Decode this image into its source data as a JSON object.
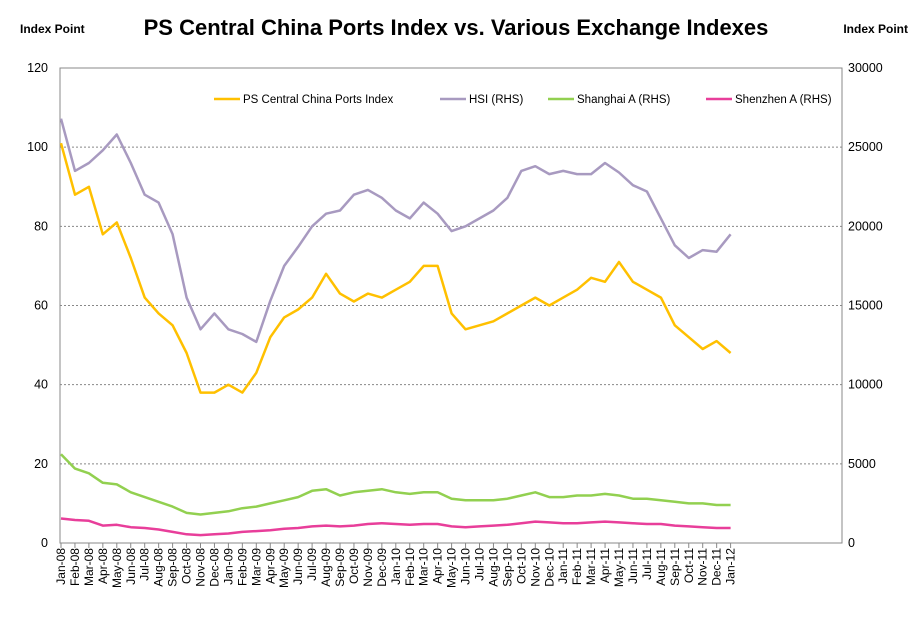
{
  "chart_data": {
    "type": "line",
    "title": "PS Central China Ports Index vs. Various Exchange Indexes",
    "ylabel_left": "Index Point",
    "ylabel_right": "Index Point",
    "ylim_left": [
      0,
      120
    ],
    "ylim_right": [
      0,
      30000
    ],
    "yticks_left": [
      "0",
      "20",
      "40",
      "60",
      "80",
      "100",
      "120"
    ],
    "yticks_right": [
      "0",
      "5000",
      "10000",
      "15000",
      "20000",
      "25000",
      "30000"
    ],
    "grid": true,
    "legend_position": "top-right, inside plot",
    "categories": [
      "Jan-08",
      "Feb-08",
      "Mar-08",
      "Apr-08",
      "May-08",
      "Jun-08",
      "Jul-08",
      "Aug-08",
      "Sep-08",
      "Oct-08",
      "Nov-08",
      "Dec-08",
      "Jan-09",
      "Feb-09",
      "Mar-09",
      "Apr-09",
      "May-09",
      "Jun-09",
      "Jul-09",
      "Aug-09",
      "Sep-09",
      "Oct-09",
      "Nov-09",
      "Dec-09",
      "Jan-10",
      "Feb-10",
      "Mar-10",
      "Apr-10",
      "May-10",
      "Jun-10",
      "Jul-10",
      "Aug-10",
      "Sep-10",
      "Oct-10",
      "Nov-10",
      "Dec-10",
      "Jan-11",
      "Feb-11",
      "Mar-11",
      "Apr-11",
      "May-11",
      "Jun-11",
      "Jul-11",
      "Aug-11",
      "Sep-11",
      "Oct-11",
      "Nov-11",
      "Dec-11",
      "Jan-12"
    ],
    "x_tick_labels": [
      "Jan-08",
      "Feb-08",
      "Mar-08",
      "Apr-08",
      "May-08",
      "Jun-08",
      "Jul-08",
      "Aug-08",
      "Sep-08",
      "Oct-08",
      "Nov-08",
      "Dec-08",
      "Jan-09",
      "Feb-09",
      "Mar-09",
      "Apr-09",
      "May-09",
      "Jun-09",
      "Jul-09",
      "Aug-09",
      "Sep-09",
      "Oct-09",
      "Nov-09",
      "Dec-09",
      "Jan-10",
      "Feb-10",
      "Mar-10",
      "Apr-10",
      "May-10",
      "Jun-10",
      "Jul-10",
      "Aug-10",
      "Sep-10",
      "Oct-10",
      "Nov-10",
      "Dec-10",
      "Jan-11",
      "Feb-11",
      "Mar-11",
      "Apr-11",
      "May-11",
      "Jun-11",
      "Jul-11",
      "Aug-11",
      "Sep-11",
      "Oct-11",
      "Nov-11",
      "Dec-11",
      "Jan-12"
    ],
    "series": [
      {
        "name": "PS Central China Ports Index",
        "axis": "left",
        "color": "#FFC000",
        "values": [
          101,
          88,
          90,
          78,
          81,
          72,
          62,
          58,
          55,
          48,
          38,
          38,
          40,
          38,
          43,
          52,
          57,
          59,
          62,
          68,
          63,
          61,
          63,
          62,
          64,
          66,
          70,
          70,
          58,
          54,
          55,
          56,
          58,
          60,
          62,
          60,
          62,
          64,
          67,
          66,
          71,
          66,
          64,
          62,
          55,
          52,
          49,
          51,
          48
        ]
      },
      {
        "name": "HSI (RHS)",
        "axis": "right",
        "color": "#A89AC0",
        "values": [
          26800,
          23500,
          24000,
          24800,
          25800,
          24000,
          22000,
          21500,
          19500,
          15500,
          13500,
          14500,
          13500,
          13200,
          12700,
          15300,
          17500,
          18700,
          20000,
          20800,
          21000,
          22000,
          22300,
          21800,
          21000,
          20500,
          21500,
          20800,
          19700,
          20000,
          20500,
          21000,
          21800,
          23500,
          23800,
          23300,
          23500,
          23300,
          23300,
          24000,
          23400,
          22600,
          22200,
          20500,
          18800,
          18000,
          18500,
          18400,
          19500
        ]
      },
      {
        "name": "Shanghai A (RHS)",
        "axis": "right",
        "color": "#92D050",
        "values": [
          5600,
          4700,
          4400,
          3800,
          3700,
          3200,
          2900,
          2600,
          2300,
          1900,
          1800,
          1900,
          2000,
          2200,
          2300,
          2500,
          2700,
          2900,
          3300,
          3400,
          3000,
          3200,
          3300,
          3400,
          3200,
          3100,
          3200,
          3200,
          2800,
          2700,
          2700,
          2700,
          2800,
          3000,
          3200,
          2900,
          2900,
          3000,
          3000,
          3100,
          3000,
          2800,
          2800,
          2700,
          2600,
          2500,
          2500,
          2400,
          2400
        ]
      },
      {
        "name": "Shenzhen A (RHS)",
        "axis": "right",
        "color": "#E83E9A",
        "values": [
          1550,
          1450,
          1400,
          1100,
          1150,
          1000,
          950,
          850,
          700,
          550,
          500,
          550,
          600,
          700,
          750,
          800,
          900,
          950,
          1050,
          1100,
          1050,
          1100,
          1200,
          1250,
          1200,
          1150,
          1200,
          1200,
          1050,
          1000,
          1050,
          1100,
          1150,
          1250,
          1350,
          1300,
          1250,
          1250,
          1300,
          1350,
          1300,
          1250,
          1200,
          1200,
          1100,
          1050,
          1000,
          950,
          950
        ]
      }
    ]
  }
}
